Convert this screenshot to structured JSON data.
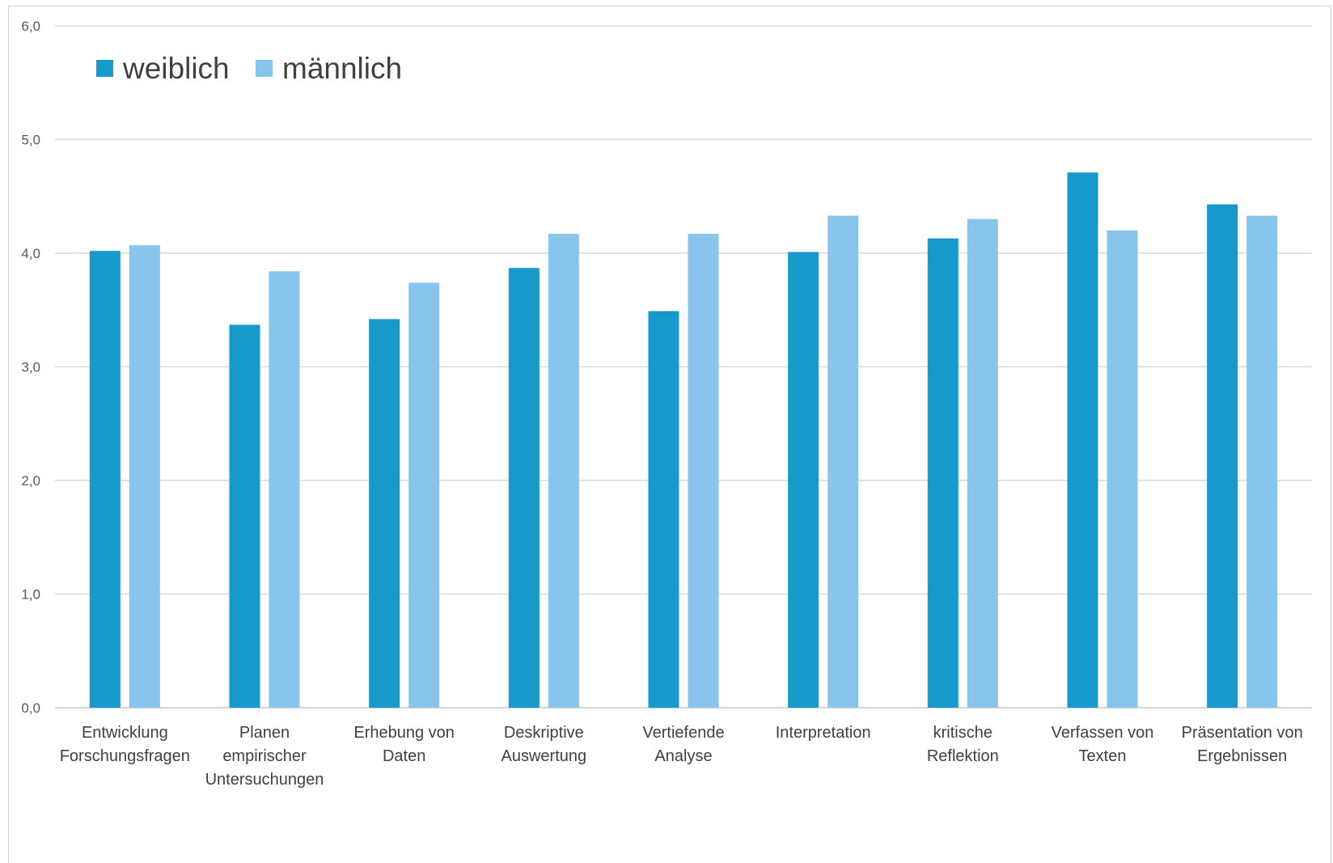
{
  "chart_data": {
    "type": "bar",
    "categories": [
      [
        "Entwicklung",
        "Forschungsfragen"
      ],
      [
        "Planen",
        "empirischer",
        "Untersuchungen"
      ],
      [
        "Erhebung von",
        "Daten"
      ],
      [
        "Deskriptive",
        "Auswertung"
      ],
      [
        "Vertiefende",
        "Analyse"
      ],
      [
        "Interpretation"
      ],
      [
        "kritische",
        "Reflektion"
      ],
      [
        "Verfassen von",
        "Texten"
      ],
      [
        "Präsentation von",
        "Ergebnissen"
      ]
    ],
    "series": [
      {
        "name": "weiblich",
        "color": "#1899cb",
        "values": [
          4.02,
          3.37,
          3.42,
          3.87,
          3.49,
          4.01,
          4.13,
          4.71,
          4.43
        ]
      },
      {
        "name": "männlich",
        "color": "#88c4ec",
        "values": [
          4.07,
          3.84,
          3.74,
          4.17,
          4.17,
          4.33,
          4.3,
          4.2,
          4.33
        ]
      }
    ],
    "yticks": [
      "0,0",
      "1,0",
      "2,0",
      "3,0",
      "4,0",
      "5,0",
      "6,0"
    ],
    "ylim": [
      0,
      6
    ],
    "grid": true,
    "legend": "top-left"
  }
}
